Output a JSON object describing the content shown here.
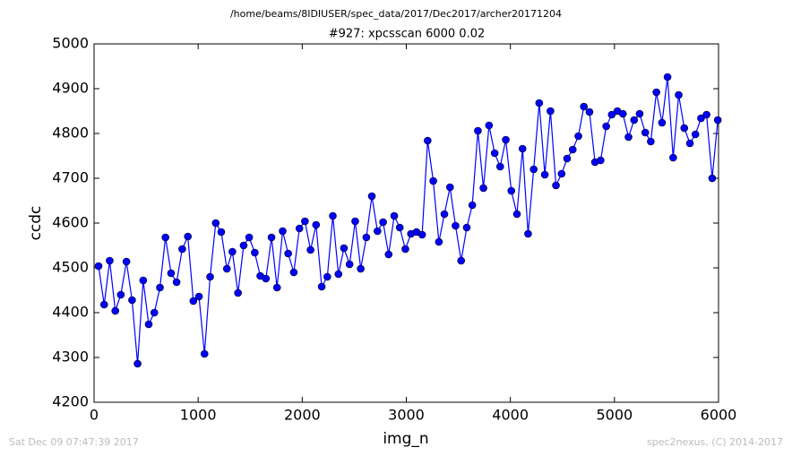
{
  "chart_data": {
    "type": "line",
    "header": "/home/beams/8IDIUSER/spec_data/2017/Dec2017/archer20171204",
    "title": "#927: xpcsscan 6000 0.02",
    "xlabel": "img_n",
    "ylabel": "ccdc",
    "footer_left": "Sat Dec 09 07:47:39 2017",
    "footer_right": "spec2nexus, (C) 2014-2017",
    "xlim": [
      0,
      6000
    ],
    "xticks": [
      0,
      1000,
      2000,
      3000,
      4000,
      5000,
      6000
    ],
    "ylim": [
      4200,
      5000
    ],
    "yticks": [
      4200,
      4300,
      4400,
      4500,
      4600,
      4700,
      4800,
      4900,
      5000
    ],
    "grid": false,
    "x": [
      43,
      97,
      150,
      204,
      257,
      311,
      365,
      418,
      472,
      525,
      579,
      633,
      686,
      740,
      793,
      847,
      901,
      954,
      1008,
      1061,
      1115,
      1169,
      1222,
      1276,
      1329,
      1383,
      1437,
      1490,
      1544,
      1597,
      1651,
      1705,
      1758,
      1812,
      1865,
      1919,
      1973,
      2026,
      2080,
      2133,
      2187,
      2241,
      2294,
      2348,
      2401,
      2455,
      2509,
      2562,
      2616,
      2669,
      2723,
      2777,
      2830,
      2884,
      2937,
      2991,
      3045,
      3098,
      3152,
      3205,
      3259,
      3313,
      3366,
      3420,
      3473,
      3527,
      3581,
      3634,
      3688,
      3741,
      3795,
      3849,
      3902,
      3956,
      4009,
      4063,
      4117,
      4170,
      4224,
      4277,
      4331,
      4385,
      4438,
      4492,
      4545,
      4599,
      4653,
      4706,
      4760,
      4813,
      4867,
      4921,
      4974,
      5028,
      5081,
      5135,
      5189,
      5242,
      5296,
      5349,
      5403,
      5457,
      5510,
      5564,
      5617,
      5671,
      5725,
      5778,
      5832,
      5885,
      5939,
      5993
    ],
    "series": [
      {
        "color": "#0000ff",
        "values": [
          4504,
          4418,
          4516,
          4404,
          4440,
          4514,
          4428,
          4286,
          4472,
          4374,
          4400,
          4456,
          4568,
          4488,
          4468,
          4542,
          4570,
          4426,
          4436,
          4308,
          4480,
          4600,
          4580,
          4498,
          4536,
          4444,
          4550,
          4568,
          4534,
          4482,
          4476,
          4568,
          4456,
          4582,
          4532,
          4490,
          4588,
          4604,
          4540,
          4596,
          4458,
          4480,
          4616,
          4486,
          4544,
          4508,
          4604,
          4498,
          4568,
          4660,
          4582,
          4602,
          4530,
          4616,
          4590,
          4542,
          4576,
          4580,
          4574,
          4784,
          4694,
          4558,
          4620,
          4680,
          4594,
          4516,
          4590,
          4640,
          4806,
          4678,
          4818,
          4756,
          4726,
          4786,
          4672,
          4620,
          4766,
          4576,
          4720,
          4868,
          4708,
          4850,
          4684,
          4710,
          4744,
          4764,
          4794,
          4860,
          4848,
          4736,
          4740,
          4816,
          4842,
          4850,
          4844,
          4792,
          4830,
          4844,
          4802,
          4782,
          4892,
          4824,
          4926,
          4746,
          4886,
          4812,
          4778,
          4798,
          4834,
          4842,
          4700,
          4830
        ]
      }
    ]
  }
}
